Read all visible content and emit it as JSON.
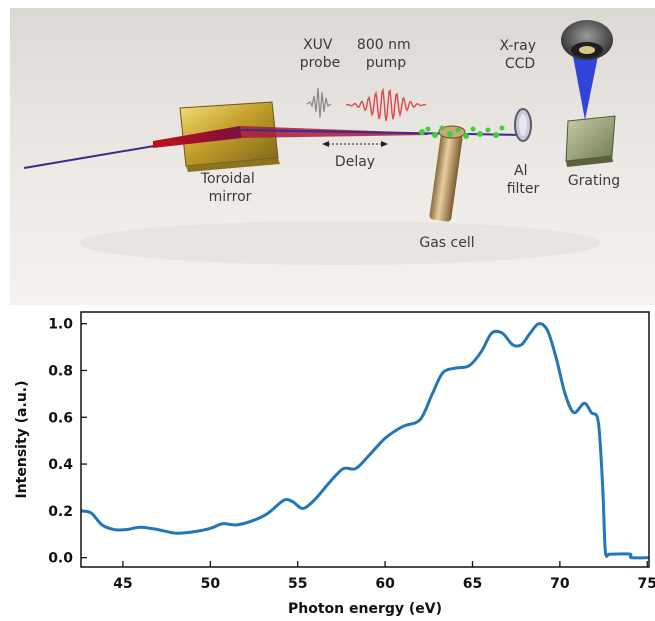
{
  "setup": {
    "labels": {
      "xuv_probe": [
        "XUV",
        "probe"
      ],
      "pump": [
        "800 nm",
        "pump"
      ],
      "ccd": [
        "X-ray",
        "CCD"
      ],
      "toroidal_mirror": [
        "Toroidal",
        "mirror"
      ],
      "delay": "Delay",
      "al_filter": [
        "Al",
        "filter"
      ],
      "grating": "Grating",
      "gas_cell": "Gas cell"
    }
  },
  "chart_data": {
    "type": "line",
    "title": "",
    "xlabel": "Photon energy (eV)",
    "ylabel": "Intensity (a.u.)",
    "xlim": [
      42.6,
      75.1
    ],
    "ylim": [
      -0.04,
      1.05
    ],
    "xticks": [
      45,
      50,
      55,
      60,
      65,
      70,
      75
    ],
    "yticks": [
      0.0,
      0.2,
      0.4,
      0.6,
      0.8,
      1.0
    ],
    "color": "#2476b5",
    "x": [
      42.6,
      43.2,
      43.8,
      44.5,
      45.2,
      46.0,
      47.0,
      48.0,
      49.0,
      50.0,
      50.7,
      51.5,
      52.5,
      53.3,
      54.2,
      54.7,
      55.3,
      56.0,
      56.8,
      57.6,
      58.3,
      59.0,
      60.0,
      61.0,
      62.0,
      62.7,
      63.3,
      64.0,
      64.8,
      65.5,
      66.1,
      66.7,
      67.3,
      67.8,
      68.3,
      68.8,
      69.3,
      69.8,
      70.3,
      70.8,
      71.4,
      71.8,
      72.2,
      72.45,
      72.6,
      72.8,
      73.0,
      74.0,
      74.1,
      75.1
    ],
    "y": [
      0.2,
      0.19,
      0.14,
      0.12,
      0.12,
      0.13,
      0.12,
      0.105,
      0.11,
      0.125,
      0.145,
      0.14,
      0.16,
      0.19,
      0.245,
      0.24,
      0.21,
      0.25,
      0.32,
      0.38,
      0.38,
      0.43,
      0.51,
      0.56,
      0.59,
      0.7,
      0.79,
      0.81,
      0.82,
      0.88,
      0.96,
      0.96,
      0.91,
      0.91,
      0.96,
      1.0,
      0.97,
      0.85,
      0.7,
      0.62,
      0.66,
      0.62,
      0.58,
      0.3,
      0.03,
      0.015,
      0.015,
      0.015,
      0.0,
      0.0
    ]
  }
}
